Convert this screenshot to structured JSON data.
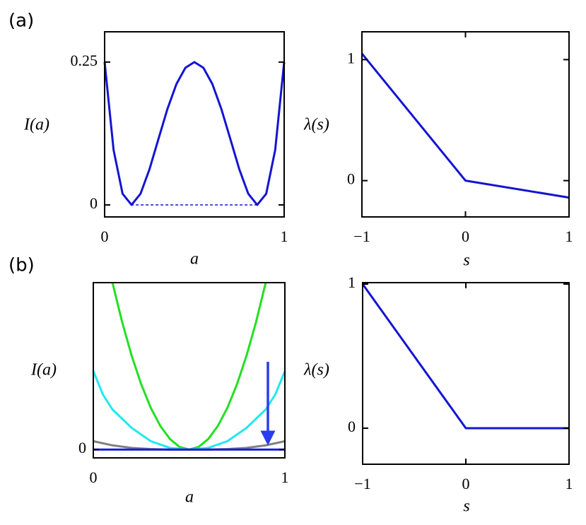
{
  "panel_labels": [
    "(a)",
    "(b)"
  ],
  "chart_data": [
    {
      "type": "line",
      "xlabel": "a",
      "ylabel": "I(a)",
      "xlim": [
        0,
        1
      ],
      "ylim": [
        -0.021,
        0.303
      ],
      "xticks": [
        0,
        1
      ],
      "yticks": [
        0,
        0.25
      ],
      "series": [
        {
          "color": "#1414d2",
          "style": "solid",
          "x": [
            0,
            0.05,
            0.1,
            0.15,
            0.2,
            0.25,
            0.3,
            0.35,
            0.4,
            0.45,
            0.5,
            0.55,
            0.6,
            0.65,
            0.7,
            0.75,
            0.8,
            0.85,
            0.9,
            0.95,
            1
          ],
          "values": [
            0.25,
            0.0961,
            0.0196,
            0.0001,
            0.0196,
            0.0625,
            0.1156,
            0.1681,
            0.2116,
            0.2401,
            0.25,
            0.2401,
            0.2116,
            0.1681,
            0.1156,
            0.0625,
            0.0196,
            0.0001,
            0.0196,
            0.0961,
            0.25
          ]
        },
        {
          "color": "#1414d2",
          "style": "dashed",
          "x": [
            0.146,
            0.854
          ],
          "values": [
            0,
            0
          ]
        }
      ]
    },
    {
      "type": "line",
      "xlabel": "s",
      "ylabel": "λ(s)",
      "xlim": [
        -1,
        1
      ],
      "ylim": [
        -0.3,
        1.23
      ],
      "xticks": [
        {
          "value": -1,
          "label": "−1"
        },
        0,
        1
      ],
      "yticks": [
        0,
        1
      ],
      "series": [
        {
          "color": "#1414d2",
          "style": "solid",
          "x": [
            -1,
            0,
            1
          ],
          "values": [
            1.05,
            0,
            -0.14
          ]
        }
      ]
    },
    {
      "type": "line",
      "xlabel": "a",
      "ylabel": "I(a)",
      "xlim": [
        0,
        1
      ],
      "ylim": [
        -0.05,
        1
      ],
      "xticks": [
        0,
        1
      ],
      "yticks": [
        0
      ],
      "series": [
        {
          "color": "#22e022",
          "style": "solid",
          "x": [
            0.1,
            0.15,
            0.2,
            0.25,
            0.3,
            0.35,
            0.4,
            0.45,
            0.5,
            0.55,
            0.6,
            0.65,
            0.7,
            0.75,
            0.8,
            0.85,
            0.9
          ],
          "values": [
            1,
            0.766,
            0.563,
            0.391,
            0.25,
            0.141,
            0.063,
            0.016,
            0,
            0.016,
            0.063,
            0.141,
            0.25,
            0.391,
            0.563,
            0.766,
            1
          ]
        },
        {
          "color": "#22e8f0",
          "style": "solid",
          "x": [
            0,
            0.05,
            0.1,
            0.2,
            0.3,
            0.4,
            0.5,
            0.6,
            0.7,
            0.8,
            0.9,
            0.95,
            1
          ],
          "values": [
            0.47,
            0.33,
            0.24,
            0.13,
            0.05,
            0.01,
            0,
            0.01,
            0.05,
            0.13,
            0.24,
            0.33,
            0.47
          ]
        },
        {
          "color": "#808080",
          "style": "solid",
          "x": [
            0,
            0.1,
            0.2,
            0.3,
            0.4,
            0.5,
            0.6,
            0.7,
            0.8,
            0.9,
            1
          ],
          "values": [
            0.05,
            0.025,
            0.01,
            0.003,
            0,
            0,
            0,
            0.003,
            0.01,
            0.025,
            0.05
          ]
        },
        {
          "color": "#1a1adf",
          "style": "solid",
          "x": [
            0,
            1
          ],
          "values": [
            0,
            0
          ]
        }
      ]
    },
    {
      "type": "line",
      "xlabel": "s",
      "ylabel": "λ(s)",
      "xlim": [
        -1,
        1
      ],
      "ylim": [
        -0.25,
        1.01
      ],
      "xticks": [
        {
          "value": -1,
          "label": "−1"
        },
        0,
        1
      ],
      "yticks": [
        0,
        1
      ],
      "series": [
        {
          "color": "#1414d2",
          "style": "solid",
          "x": [
            -1,
            0,
            1
          ],
          "values": [
            1,
            0,
            0
          ]
        }
      ]
    }
  ]
}
